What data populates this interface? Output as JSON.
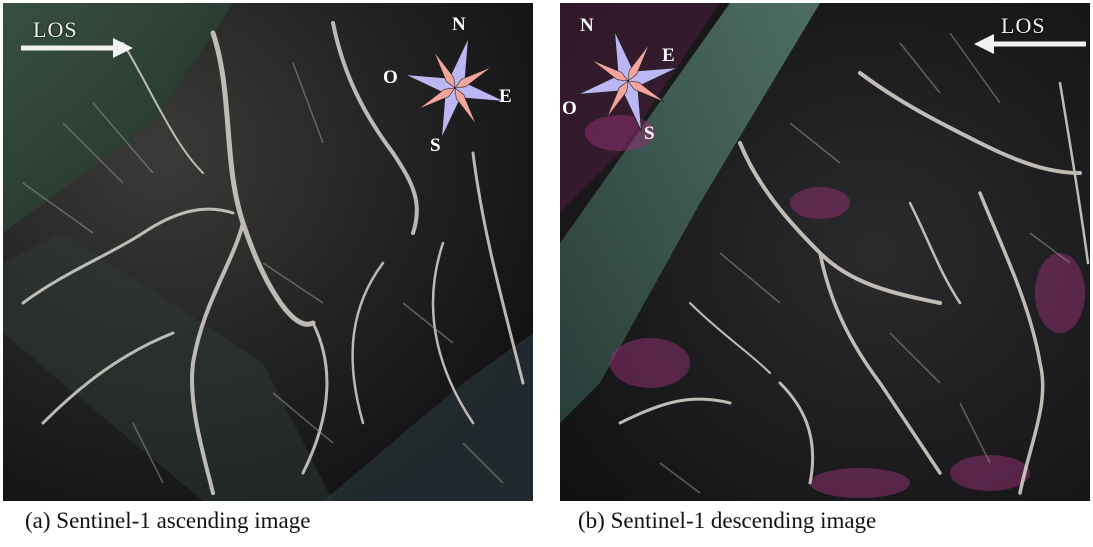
{
  "panels": [
    {
      "id": "a",
      "caption": "(a) Sentinel-1 ascending image",
      "los_label": "LOS",
      "los_direction": "right",
      "compass": {
        "n": "N",
        "e": "E",
        "s": "S",
        "w": "O"
      }
    },
    {
      "id": "b",
      "caption": "(b) Sentinel-1 descending image",
      "los_label": "LOS",
      "los_direction": "left",
      "compass": {
        "n": "N",
        "e": "E",
        "s": "S",
        "w": "O"
      }
    }
  ],
  "colors": {
    "compass_fill": "#bcb6f2",
    "compass_accent": "#f4a49a",
    "terrain_dark": "#151318",
    "terrain_ridge": "#d9d4cc",
    "terrain_tint_green": "#6f8f7a",
    "terrain_tint_magenta": "#8a2f6e"
  }
}
